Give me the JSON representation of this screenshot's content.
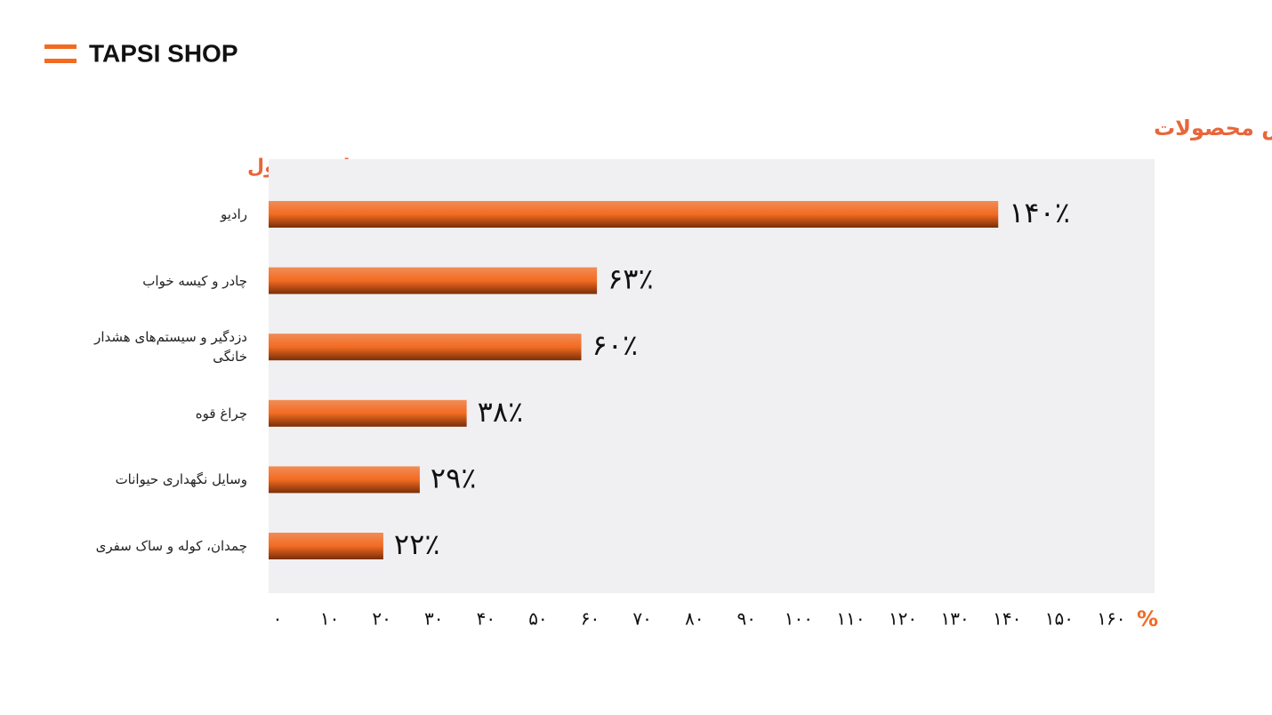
{
  "brand": "TAPSI SHOP",
  "chart_data": {
    "type": "bar",
    "orientation": "horizontal",
    "title": "افزایش فروش محصولات",
    "y_label": "نام محصول",
    "x_label": "%",
    "categories": [
      "رادیو",
      "چادر و کیسه خواب",
      "دزدگیر و سیستم‌های هشدار خانگی",
      "چراغ قوه",
      "وسایل نگهداری حیوانات",
      "چمدان، کوله و ساک سفری"
    ],
    "values": [
      140,
      63,
      60,
      38,
      29,
      22
    ],
    "value_labels": [
      "۱۴۰٪",
      "۶۳٪",
      "۶۰٪",
      "۳۸٪",
      "۲۹٪",
      "۲۲٪"
    ],
    "color": "#f26b22",
    "xlim": [
      0,
      170
    ],
    "xticks": [
      {
        "value": 0,
        "label": "۰"
      },
      {
        "value": 10,
        "label": "۱۰"
      },
      {
        "value": 20,
        "label": "۲۰"
      },
      {
        "value": 30,
        "label": "۳۰"
      },
      {
        "value": 40,
        "label": "۴۰"
      },
      {
        "value": 50,
        "label": "۵۰"
      },
      {
        "value": 60,
        "label": "۶۰"
      },
      {
        "value": 70,
        "label": "۷۰"
      },
      {
        "value": 80,
        "label": "۸۰"
      },
      {
        "value": 90,
        "label": "۹۰"
      },
      {
        "value": 100,
        "label": "۱۰۰"
      },
      {
        "value": 110,
        "label": "۱۱۰"
      },
      {
        "value": 120,
        "label": "۱۲۰"
      },
      {
        "value": 130,
        "label": "۱۳۰"
      },
      {
        "value": 140,
        "label": "۱۴۰"
      },
      {
        "value": 150,
        "label": "۱۵۰"
      },
      {
        "value": 160,
        "label": "۱۶۰"
      }
    ],
    "grid": false
  }
}
